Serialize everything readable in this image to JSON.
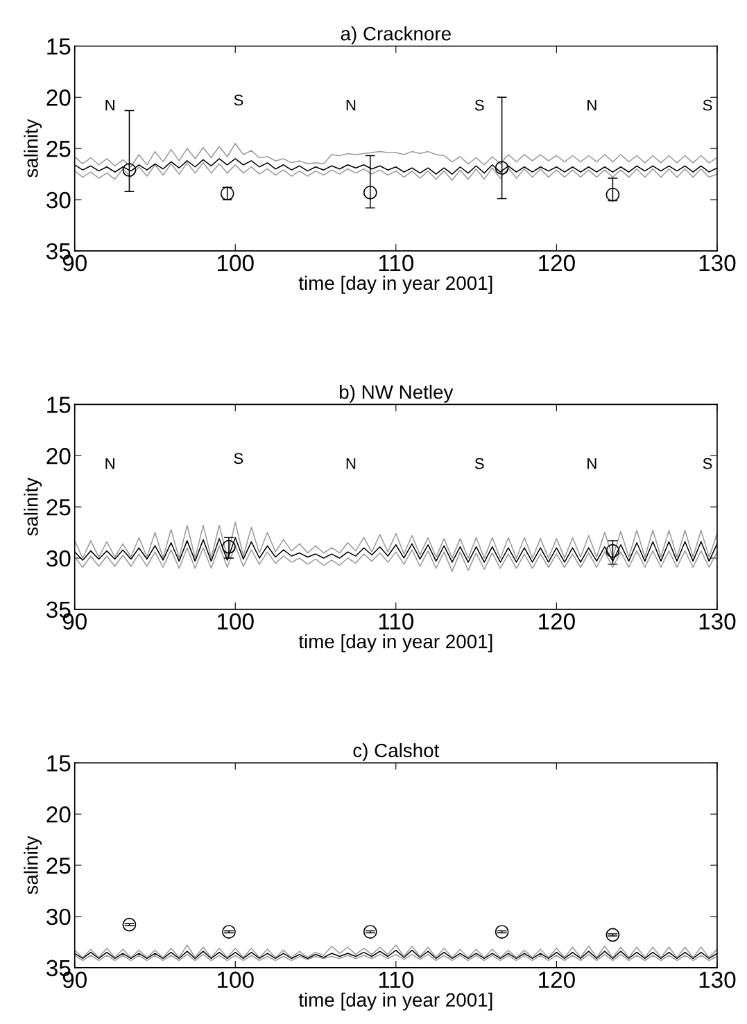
{
  "chart_data": [
    {
      "type": "line",
      "title": "a) Cracknore",
      "xlabel": "time [day in year 2001]",
      "ylabel": "salinity",
      "xlim": [
        90,
        130
      ],
      "ylim": [
        35,
        15
      ],
      "xticks": [
        90,
        100,
        110,
        120,
        130
      ],
      "yticks": [
        15,
        20,
        25,
        30,
        35
      ],
      "x": [
        90,
        90.5,
        91,
        91.5,
        92,
        92.5,
        93,
        93.5,
        94,
        94.5,
        95,
        95.5,
        96,
        96.5,
        97,
        97.5,
        98,
        98.5,
        99,
        99.5,
        100,
        100.5,
        101,
        101.5,
        102,
        102.5,
        103,
        103.5,
        104,
        104.5,
        105,
        105.5,
        106,
        106.5,
        107,
        107.5,
        108,
        108.5,
        109,
        109.5,
        110,
        110.5,
        111,
        111.5,
        112,
        112.5,
        113,
        113.5,
        114,
        114.5,
        115,
        115.5,
        116,
        116.5,
        117,
        117.5,
        118,
        118.5,
        119,
        119.5,
        120,
        120.5,
        121,
        121.5,
        122,
        122.5,
        123,
        123.5,
        124,
        124.5,
        125,
        125.5,
        126,
        126.5,
        127,
        127.5,
        128,
        128.5,
        129,
        129.5,
        130
      ],
      "series": [
        {
          "color": "#999999",
          "values": [
            25.8,
            26.5,
            25.9,
            26.6,
            26.0,
            26.7,
            26.1,
            26.8,
            25.6,
            26.6,
            25.3,
            26.3,
            25.1,
            26.2,
            25.0,
            26.0,
            24.9,
            25.9,
            24.8,
            25.8,
            24.5,
            25.6,
            25.2,
            25.9,
            25.8,
            26.2,
            26.0,
            26.4,
            26.2,
            26.5,
            26.4,
            26.5,
            25.6,
            25.7,
            25.5,
            25.6,
            25.5,
            25.4,
            25.3,
            25.4,
            25.4,
            25.6,
            25.3,
            25.5,
            25.3,
            25.6,
            25.7,
            26.3,
            25.8,
            26.5,
            25.9,
            26.6,
            25.8,
            26.5,
            25.6,
            26.3,
            25.6,
            26.2,
            25.6,
            26.2,
            25.7,
            26.3,
            25.7,
            26.3,
            25.7,
            26.3,
            25.6,
            26.3,
            25.6,
            26.3,
            25.7,
            26.4,
            25.7,
            26.4,
            25.7,
            26.4,
            25.7,
            26.4,
            25.7,
            26.4,
            25.9
          ]
        },
        {
          "color": "#999999",
          "values": [
            27.2,
            27.8,
            27.3,
            27.9,
            27.4,
            28.0,
            27.0,
            27.8,
            26.8,
            27.7,
            26.6,
            27.6,
            26.5,
            27.5,
            26.4,
            27.4,
            26.4,
            27.4,
            26.5,
            27.4,
            26.6,
            27.4,
            26.8,
            27.5,
            27.0,
            27.6,
            27.1,
            27.7,
            27.2,
            27.7,
            27.2,
            27.6,
            27.1,
            27.5,
            27.0,
            27.4,
            27.0,
            27.5,
            27.1,
            27.6,
            27.2,
            27.8,
            27.2,
            27.9,
            27.2,
            28.0,
            27.2,
            28.1,
            27.1,
            28.0,
            27.0,
            28.0,
            26.9,
            27.9,
            26.9,
            27.9,
            27.0,
            27.8,
            27.0,
            27.8,
            27.1,
            27.8,
            27.1,
            27.8,
            27.1,
            27.8,
            27.1,
            27.8,
            27.1,
            27.8,
            27.0,
            27.8,
            27.0,
            27.8,
            27.0,
            27.8,
            27.0,
            27.8,
            27.0,
            27.8,
            27.5
          ]
        },
        {
          "color": "#000000",
          "values": [
            26.6,
            27.1,
            26.7,
            27.2,
            26.8,
            27.3,
            26.8,
            27.2,
            26.6,
            27.1,
            26.5,
            27.0,
            26.3,
            26.9,
            26.2,
            26.8,
            26.1,
            26.7,
            26.0,
            26.6,
            26.0,
            26.6,
            26.2,
            26.8,
            26.4,
            27.0,
            26.6,
            27.1,
            26.7,
            27.2,
            26.8,
            27.1,
            26.7,
            27.0,
            26.6,
            26.9,
            26.6,
            27.0,
            26.7,
            27.1,
            26.8,
            27.3,
            26.9,
            27.4,
            26.9,
            27.5,
            26.9,
            27.5,
            26.8,
            27.4,
            26.7,
            27.4,
            26.6,
            27.3,
            26.7,
            27.3,
            26.8,
            27.3,
            26.8,
            27.2,
            26.8,
            27.3,
            26.8,
            27.3,
            26.8,
            27.3,
            26.8,
            27.3,
            26.8,
            27.3,
            26.7,
            27.2,
            26.7,
            27.2,
            26.7,
            27.2,
            26.7,
            27.3,
            26.7,
            27.3,
            26.9
          ]
        },
        {
          "type": "scatter",
          "color": "#000000",
          "marker": "circle",
          "x": [
            93.4,
            99.5,
            108.4,
            116.6,
            123.5
          ],
          "values": [
            27.1,
            29.4,
            29.3,
            26.9,
            29.5
          ],
          "errors": [
            [
              21.3,
              29.2
            ],
            [
              28.8,
              30.0
            ],
            [
              25.7,
              30.8
            ],
            [
              20.0,
              29.9
            ],
            [
              27.9,
              30.1
            ]
          ]
        }
      ],
      "annotations": [
        "N",
        "S",
        "N",
        "S",
        "N",
        "S"
      ]
    },
    {
      "type": "line",
      "title": "b) NW Netley",
      "xlabel": "time [day in year 2001]",
      "ylabel": "salinity",
      "xlim": [
        90,
        130
      ],
      "ylim": [
        35,
        15
      ],
      "xticks": [
        90,
        100,
        110,
        120,
        130
      ],
      "yticks": [
        15,
        20,
        25,
        30,
        35
      ],
      "x": [
        90,
        90.5,
        91,
        91.5,
        92,
        92.5,
        93,
        93.5,
        94,
        94.5,
        95,
        95.5,
        96,
        96.5,
        97,
        97.5,
        98,
        98.5,
        99,
        99.5,
        100,
        100.5,
        101,
        101.5,
        102,
        102.5,
        103,
        103.5,
        104,
        104.5,
        105,
        105.5,
        106,
        106.5,
        107,
        107.5,
        108,
        108.5,
        109,
        109.5,
        110,
        110.5,
        111,
        111.5,
        112,
        112.5,
        113,
        113.5,
        114,
        114.5,
        115,
        115.5,
        116,
        116.5,
        117,
        117.5,
        118,
        118.5,
        119,
        119.5,
        120,
        120.5,
        121,
        121.5,
        122,
        122.5,
        123,
        123.5,
        124,
        124.5,
        125,
        125.5,
        126,
        126.5,
        127,
        127.5,
        128,
        128.5,
        129,
        129.5,
        130
      ],
      "series": [
        {
          "color": "#999999",
          "values": [
            28.3,
            30.0,
            28.3,
            29.9,
            28.4,
            29.9,
            28.6,
            29.9,
            28.0,
            29.9,
            27.5,
            30.0,
            27.2,
            30.0,
            26.8,
            30.0,
            26.8,
            30.0,
            26.8,
            29.9,
            26.5,
            29.8,
            27.0,
            29.5,
            27.5,
            29.4,
            28.2,
            29.3,
            28.6,
            29.5,
            28.8,
            29.5,
            29.0,
            29.5,
            28.5,
            29.3,
            28.0,
            29.4,
            27.7,
            29.4,
            27.6,
            29.6,
            27.8,
            29.7,
            28.0,
            29.9,
            28.1,
            30.0,
            28.1,
            30.0,
            28.0,
            30.0,
            28.0,
            30.0,
            28.0,
            30.0,
            28.0,
            30.0,
            28.1,
            30.0,
            28.1,
            30.0,
            28.0,
            29.9,
            27.8,
            29.9,
            27.5,
            29.9,
            27.4,
            29.9,
            27.3,
            29.9,
            27.3,
            29.9,
            27.3,
            29.9,
            27.3,
            29.9,
            27.3,
            29.9,
            27.6
          ]
        },
        {
          "color": "#999999",
          "values": [
            29.9,
            30.9,
            29.8,
            30.8,
            29.8,
            30.8,
            29.7,
            30.8,
            29.6,
            30.8,
            29.4,
            30.9,
            29.2,
            31.0,
            29.0,
            31.0,
            29.0,
            31.0,
            28.8,
            30.9,
            28.8,
            30.8,
            29.2,
            30.6,
            29.4,
            30.5,
            29.8,
            30.4,
            30.0,
            30.6,
            30.1,
            30.7,
            30.2,
            30.7,
            30.0,
            30.5,
            29.6,
            30.3,
            29.5,
            30.4,
            29.4,
            30.6,
            29.2,
            30.8,
            29.3,
            31.0,
            29.4,
            31.3,
            29.4,
            31.2,
            29.5,
            31.1,
            29.5,
            31.0,
            29.6,
            31.0,
            29.6,
            31.0,
            29.6,
            30.9,
            29.6,
            30.9,
            29.6,
            30.9,
            29.5,
            30.9,
            29.4,
            30.9,
            29.4,
            30.9,
            29.3,
            30.9,
            29.3,
            30.9,
            29.3,
            30.9,
            29.3,
            30.9,
            29.3,
            30.9,
            29.4
          ]
        },
        {
          "color": "#000000",
          "values": [
            29.4,
            30.2,
            29.3,
            30.1,
            29.3,
            30.1,
            29.2,
            30.1,
            29.0,
            30.1,
            28.8,
            30.2,
            28.5,
            30.3,
            28.3,
            30.3,
            28.2,
            30.3,
            28.1,
            30.2,
            28.0,
            30.1,
            28.4,
            30.0,
            28.8,
            29.9,
            29.2,
            29.8,
            29.5,
            29.9,
            29.6,
            30.0,
            29.6,
            30.0,
            29.4,
            29.8,
            29.0,
            29.7,
            28.9,
            29.8,
            28.7,
            30.0,
            28.6,
            30.1,
            28.7,
            30.3,
            28.8,
            30.4,
            28.9,
            30.4,
            28.9,
            30.4,
            28.9,
            30.4,
            29.0,
            30.4,
            29.0,
            30.4,
            29.0,
            30.4,
            29.0,
            30.4,
            29.0,
            30.4,
            29.0,
            30.3,
            28.9,
            30.3,
            28.7,
            30.3,
            28.5,
            30.3,
            28.4,
            30.3,
            28.4,
            30.3,
            28.4,
            30.3,
            28.4,
            30.3,
            28.6
          ]
        },
        {
          "type": "scatter",
          "color": "#000000",
          "marker": "circle",
          "x": [
            99.6,
            123.5
          ],
          "values": [
            28.9,
            29.3
          ],
          "errors": [
            [
              28.0,
              30.0
            ],
            [
              28.3,
              30.6
            ]
          ]
        }
      ],
      "annotations": [
        "N",
        "S",
        "N",
        "S",
        "N",
        "S"
      ]
    },
    {
      "type": "line",
      "title": "c) Calshot",
      "xlabel": "time [day in year 2001]",
      "ylabel": "salinity",
      "xlim": [
        90,
        130
      ],
      "ylim": [
        35,
        15
      ],
      "xticks": [
        90,
        100,
        110,
        120,
        130
      ],
      "yticks": [
        15,
        20,
        25,
        30,
        35
      ],
      "x": [
        90,
        90.5,
        91,
        91.5,
        92,
        92.5,
        93,
        93.5,
        94,
        94.5,
        95,
        95.5,
        96,
        96.5,
        97,
        97.5,
        98,
        98.5,
        99,
        99.5,
        100,
        100.5,
        101,
        101.5,
        102,
        102.5,
        103,
        103.5,
        104,
        104.5,
        105,
        105.5,
        106,
        106.5,
        107,
        107.5,
        108,
        108.5,
        109,
        109.5,
        110,
        110.5,
        111,
        111.5,
        112,
        112.5,
        113,
        113.5,
        114,
        114.5,
        115,
        115.5,
        116,
        116.5,
        117,
        117.5,
        118,
        118.5,
        119,
        119.5,
        120,
        120.5,
        121,
        121.5,
        122,
        122.5,
        123,
        123.5,
        124,
        124.5,
        125,
        125.5,
        126,
        126.5,
        127,
        127.5,
        128,
        128.5,
        129,
        129.5,
        130
      ],
      "series": [
        {
          "color": "#000000",
          "values": [
            33.6,
            34.1,
            33.5,
            34.1,
            33.5,
            34.1,
            33.6,
            34.1,
            33.6,
            34.1,
            33.6,
            34.1,
            33.5,
            34.1,
            33.4,
            34.1,
            33.4,
            34.1,
            33.5,
            34.1,
            33.5,
            34.1,
            33.5,
            34.1,
            33.6,
            34.1,
            33.6,
            34.1,
            33.7,
            34.1,
            33.7,
            34.0,
            33.6,
            33.9,
            33.6,
            33.9,
            33.5,
            33.9,
            33.4,
            33.9,
            33.3,
            34.0,
            33.3,
            34.0,
            33.4,
            34.1,
            33.5,
            34.1,
            33.6,
            34.1,
            33.6,
            34.1,
            33.6,
            34.1,
            33.6,
            34.1,
            33.6,
            34.1,
            33.6,
            34.1,
            33.5,
            34.1,
            33.5,
            34.1,
            33.4,
            34.1,
            33.4,
            34.1,
            33.4,
            34.1,
            33.5,
            34.1,
            33.5,
            34.1,
            33.5,
            34.1,
            33.5,
            34.1,
            33.5,
            34.1,
            33.6
          ]
        },
        {
          "color": "#999999",
          "values": [
            33.3,
            34.0,
            33.2,
            34.0,
            33.1,
            34.0,
            33.2,
            34.0,
            33.3,
            34.0,
            33.3,
            34.0,
            33.1,
            34.0,
            32.8,
            34.0,
            33.0,
            34.0,
            33.1,
            34.0,
            33.1,
            34.0,
            33.1,
            34.0,
            33.2,
            34.0,
            33.3,
            34.0,
            33.4,
            34.0,
            33.5,
            33.8,
            32.9,
            33.6,
            33.0,
            33.7,
            33.1,
            33.7,
            33.0,
            33.7,
            32.8,
            33.9,
            32.9,
            33.9,
            33.0,
            34.0,
            33.1,
            34.0,
            33.2,
            34.0,
            33.2,
            34.0,
            33.2,
            34.0,
            33.3,
            34.0,
            33.3,
            34.0,
            33.2,
            34.0,
            33.1,
            34.0,
            33.0,
            34.0,
            32.9,
            34.0,
            32.9,
            34.0,
            33.0,
            34.0,
            33.0,
            34.0,
            33.0,
            34.0,
            33.0,
            34.0,
            33.0,
            34.0,
            33.0,
            34.0,
            33.2
          ]
        },
        {
          "color": "#999999",
          "values": [
            33.8,
            34.3,
            33.8,
            34.3,
            33.8,
            34.3,
            33.8,
            34.3,
            33.8,
            34.3,
            33.8,
            34.3,
            33.8,
            34.3,
            33.7,
            34.3,
            33.7,
            34.3,
            33.8,
            34.3,
            33.8,
            34.3,
            33.8,
            34.3,
            33.9,
            34.3,
            33.9,
            34.3,
            33.9,
            34.2,
            33.9,
            34.1,
            33.9,
            34.1,
            33.8,
            34.1,
            33.8,
            34.1,
            33.7,
            34.1,
            33.7,
            34.2,
            33.7,
            34.2,
            33.7,
            34.3,
            33.8,
            34.3,
            33.8,
            34.3,
            33.8,
            34.3,
            33.8,
            34.3,
            33.8,
            34.3,
            33.8,
            34.3,
            33.8,
            34.3,
            33.8,
            34.3,
            33.8,
            34.3,
            33.7,
            34.3,
            33.7,
            34.3,
            33.7,
            34.3,
            33.8,
            34.3,
            33.8,
            34.3,
            33.8,
            34.3,
            33.8,
            34.3,
            33.8,
            34.3,
            33.9
          ]
        },
        {
          "type": "scatter",
          "color": "#000000",
          "marker": "circle",
          "x": [
            93.4,
            99.6,
            108.4,
            116.6,
            123.5
          ],
          "values": [
            30.8,
            31.5,
            31.5,
            31.5,
            31.8
          ],
          "errors": [
            0.1,
            0.1,
            0.1,
            0.1,
            0.1
          ]
        }
      ]
    }
  ]
}
